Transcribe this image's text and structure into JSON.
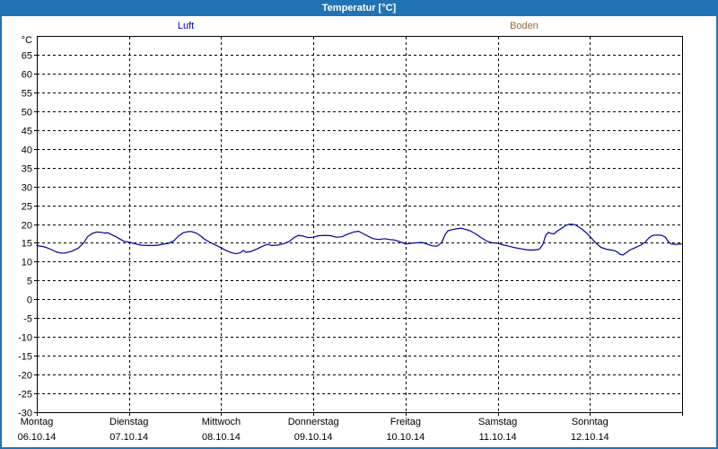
{
  "window": {
    "title": "Temperatur [°C]"
  },
  "legend": {
    "items": [
      {
        "label": "Luft",
        "color": "#0000cc"
      },
      {
        "label": "Boden",
        "color": "#996633"
      }
    ]
  },
  "colors": {
    "titlebar": "#2173b4",
    "panel_border": "#2173b4",
    "plot_border": "#000000",
    "grid": "#000000",
    "background": "#ffffff",
    "luft_series": "#0000a0",
    "boden_series": "#996633"
  },
  "chart_data": {
    "type": "line",
    "title": "Temperatur [°C]",
    "ylabel_unit": "°C",
    "ylim": [
      -30,
      70
    ],
    "ytick_step": 5,
    "ytick_labels": [
      65,
      60,
      55,
      50,
      45,
      40,
      35,
      30,
      25,
      20,
      15,
      10,
      5,
      0,
      -5,
      -10,
      -15,
      -20,
      -25,
      -30
    ],
    "grid": "dashed",
    "legend_position": "top",
    "xlim_days": [
      0,
      7
    ],
    "x_days": [
      {
        "name": "Montag",
        "date": "06.10.14"
      },
      {
        "name": "Dienstag",
        "date": "07.10.14"
      },
      {
        "name": "Mittwoch",
        "date": "08.10.14"
      },
      {
        "name": "Donnerstag",
        "date": "09.10.14"
      },
      {
        "name": "Freitag",
        "date": "10.10.14"
      },
      {
        "name": "Samstag",
        "date": "11.10.14"
      },
      {
        "name": "Sonntag",
        "date": "12.10.14"
      }
    ],
    "series": [
      {
        "name": "Luft",
        "color": "#0000a0",
        "points_day_temp": [
          [
            0.0,
            14.3
          ],
          [
            0.09,
            13.9
          ],
          [
            0.16,
            13.2
          ],
          [
            0.21,
            12.6
          ],
          [
            0.26,
            12.3
          ],
          [
            0.31,
            12.3
          ],
          [
            0.38,
            12.8
          ],
          [
            0.45,
            13.6
          ],
          [
            0.51,
            15.0
          ],
          [
            0.55,
            16.6
          ],
          [
            0.6,
            17.5
          ],
          [
            0.65,
            17.9
          ],
          [
            0.7,
            17.8
          ],
          [
            0.74,
            17.6
          ],
          [
            0.77,
            17.7
          ],
          [
            0.81,
            17.2
          ],
          [
            0.86,
            16.6
          ],
          [
            0.91,
            15.9
          ],
          [
            0.95,
            15.4
          ],
          [
            1.0,
            15.2
          ],
          [
            1.06,
            14.8
          ],
          [
            1.13,
            14.4
          ],
          [
            1.21,
            14.3
          ],
          [
            1.29,
            14.3
          ],
          [
            1.36,
            14.6
          ],
          [
            1.43,
            14.9
          ],
          [
            1.49,
            15.6
          ],
          [
            1.54,
            16.9
          ],
          [
            1.59,
            17.7
          ],
          [
            1.64,
            18.0
          ],
          [
            1.68,
            18.0
          ],
          [
            1.73,
            17.6
          ],
          [
            1.78,
            16.8
          ],
          [
            1.83,
            15.8
          ],
          [
            1.89,
            15.0
          ],
          [
            1.95,
            14.3
          ],
          [
            2.0,
            13.7
          ],
          [
            2.05,
            13.0
          ],
          [
            2.11,
            12.4
          ],
          [
            2.16,
            12.1
          ],
          [
            2.21,
            12.4
          ],
          [
            2.24,
            13.0
          ],
          [
            2.27,
            12.5
          ],
          [
            2.32,
            12.7
          ],
          [
            2.39,
            13.4
          ],
          [
            2.45,
            14.1
          ],
          [
            2.5,
            14.6
          ],
          [
            2.55,
            14.3
          ],
          [
            2.61,
            14.4
          ],
          [
            2.68,
            14.8
          ],
          [
            2.74,
            15.4
          ],
          [
            2.79,
            16.4
          ],
          [
            2.84,
            17.0
          ],
          [
            2.89,
            16.8
          ],
          [
            2.94,
            16.4
          ],
          [
            3.0,
            16.5
          ],
          [
            3.06,
            16.9
          ],
          [
            3.13,
            17.0
          ],
          [
            3.19,
            16.9
          ],
          [
            3.25,
            16.5
          ],
          [
            3.31,
            16.6
          ],
          [
            3.37,
            17.3
          ],
          [
            3.44,
            17.9
          ],
          [
            3.49,
            18.1
          ],
          [
            3.53,
            17.6
          ],
          [
            3.59,
            16.8
          ],
          [
            3.65,
            16.1
          ],
          [
            3.71,
            15.9
          ],
          [
            3.77,
            16.1
          ],
          [
            3.82,
            15.9
          ],
          [
            3.87,
            15.8
          ],
          [
            3.93,
            15.4
          ],
          [
            4.0,
            14.7
          ],
          [
            4.06,
            14.9
          ],
          [
            4.12,
            15.0
          ],
          [
            4.18,
            15.1
          ],
          [
            4.23,
            14.7
          ],
          [
            4.29,
            14.2
          ],
          [
            4.34,
            14.1
          ],
          [
            4.39,
            15.0
          ],
          [
            4.43,
            17.2
          ],
          [
            4.46,
            18.2
          ],
          [
            4.5,
            18.5
          ],
          [
            4.55,
            18.7
          ],
          [
            4.6,
            18.9
          ],
          [
            4.65,
            18.6
          ],
          [
            4.7,
            18.2
          ],
          [
            4.76,
            17.4
          ],
          [
            4.82,
            16.4
          ],
          [
            4.88,
            15.5
          ],
          [
            4.94,
            15.0
          ],
          [
            5.0,
            14.9
          ],
          [
            5.05,
            14.5
          ],
          [
            5.12,
            14.1
          ],
          [
            5.19,
            13.7
          ],
          [
            5.26,
            13.4
          ],
          [
            5.33,
            13.1
          ],
          [
            5.39,
            13.1
          ],
          [
            5.45,
            13.3
          ],
          [
            5.49,
            14.6
          ],
          [
            5.52,
            17.0
          ],
          [
            5.55,
            17.8
          ],
          [
            5.58,
            17.5
          ],
          [
            5.61,
            17.4
          ],
          [
            5.65,
            18.2
          ],
          [
            5.7,
            19.0
          ],
          [
            5.74,
            19.7
          ],
          [
            5.79,
            20.0
          ],
          [
            5.84,
            19.8
          ],
          [
            5.9,
            18.9
          ],
          [
            5.96,
            17.7
          ],
          [
            6.0,
            16.7
          ],
          [
            6.04,
            15.6
          ],
          [
            6.08,
            14.6
          ],
          [
            6.12,
            13.8
          ],
          [
            6.18,
            13.3
          ],
          [
            6.23,
            13.1
          ],
          [
            6.27,
            12.9
          ],
          [
            6.3,
            12.5
          ],
          [
            6.33,
            11.9
          ],
          [
            6.36,
            11.8
          ],
          [
            6.4,
            12.5
          ],
          [
            6.44,
            13.2
          ],
          [
            6.49,
            13.7
          ],
          [
            6.55,
            14.4
          ],
          [
            6.6,
            15.2
          ],
          [
            6.64,
            16.3
          ],
          [
            6.68,
            17.0
          ],
          [
            6.74,
            17.1
          ],
          [
            6.78,
            17.0
          ],
          [
            6.82,
            16.5
          ],
          [
            6.85,
            15.3
          ],
          [
            6.88,
            14.7
          ],
          [
            6.93,
            14.6
          ],
          [
            7.0,
            14.7
          ]
        ]
      },
      {
        "name": "Boden",
        "color": "#996633",
        "points_day_temp": []
      }
    ]
  }
}
